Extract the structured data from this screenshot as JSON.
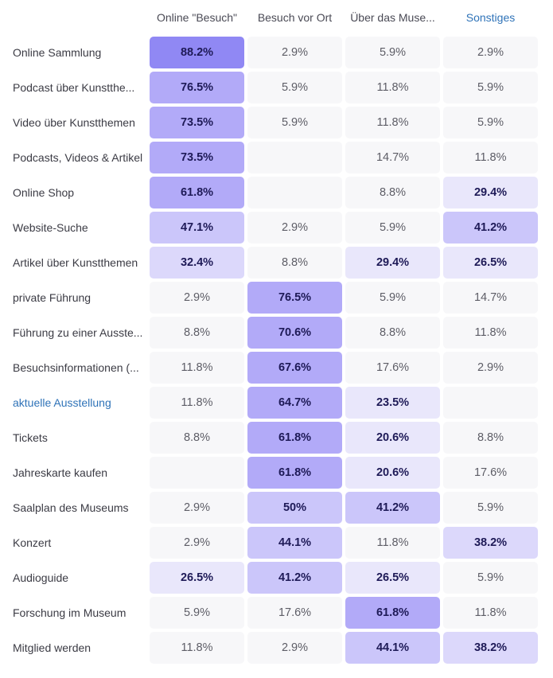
{
  "chart_data": {
    "type": "heatmap",
    "columns": [
      "Online \"Besuch\"",
      "Besuch vor Ort",
      "Über das Museum",
      "Sonstiges"
    ],
    "column_display": [
      "Online \"Besuch\"",
      "Besuch vor Ort",
      "Über das Muse...",
      "Sonstiges"
    ],
    "rows": [
      {
        "label": "Online Sammlung",
        "display": "Online Sammlung",
        "values": [
          88.2,
          2.9,
          5.9,
          2.9
        ]
      },
      {
        "label": "Podcast über Kunstthemen",
        "display": "Podcast über Kunstthe...",
        "values": [
          76.5,
          5.9,
          11.8,
          5.9
        ]
      },
      {
        "label": "Video über Kunstthemen",
        "display": "Video über Kunstthemen",
        "values": [
          73.5,
          5.9,
          11.8,
          5.9
        ]
      },
      {
        "label": "Podcasts, Videos & Artikel",
        "display": "Podcasts, Videos & Artikel",
        "values": [
          73.5,
          null,
          14.7,
          11.8
        ]
      },
      {
        "label": "Online Shop",
        "display": "Online Shop",
        "values": [
          61.8,
          null,
          8.8,
          29.4
        ]
      },
      {
        "label": "Website-Suche",
        "display": "Website-Suche",
        "values": [
          47.1,
          2.9,
          5.9,
          41.2
        ]
      },
      {
        "label": "Artikel über Kunstthemen",
        "display": "Artikel über Kunstthemen",
        "values": [
          32.4,
          8.8,
          29.4,
          26.5
        ]
      },
      {
        "label": "private Führung",
        "display": "private Führung",
        "values": [
          2.9,
          76.5,
          5.9,
          14.7
        ]
      },
      {
        "label": "Führung zu einer Ausstellung",
        "display": "Führung zu einer Ausste...",
        "values": [
          8.8,
          70.6,
          8.8,
          11.8
        ]
      },
      {
        "label": "Besuchsinformationen",
        "display": "Besuchsinformationen (...",
        "values": [
          11.8,
          67.6,
          17.6,
          2.9
        ]
      },
      {
        "label": "aktuelle Ausstellung",
        "display": "aktuelle Ausstellung",
        "values": [
          11.8,
          64.7,
          23.5,
          null
        ]
      },
      {
        "label": "Tickets",
        "display": "Tickets",
        "values": [
          8.8,
          61.8,
          20.6,
          8.8
        ]
      },
      {
        "label": "Jahreskarte kaufen",
        "display": "Jahreskarte kaufen",
        "values": [
          null,
          61.8,
          20.6,
          17.6
        ]
      },
      {
        "label": "Saalplan des Museums",
        "display": "Saalplan des Museums",
        "values": [
          2.9,
          50,
          41.2,
          5.9
        ]
      },
      {
        "label": "Konzert",
        "display": "Konzert",
        "values": [
          2.9,
          44.1,
          11.8,
          38.2
        ]
      },
      {
        "label": "Audioguide",
        "display": "Audioguide",
        "values": [
          26.5,
          41.2,
          26.5,
          5.9
        ]
      },
      {
        "label": "Forschung im Museum",
        "display": "Forschung im Museum",
        "values": [
          5.9,
          17.6,
          61.8,
          11.8
        ]
      },
      {
        "label": "Mitglied werden",
        "display": "Mitglied werden",
        "values": [
          11.8,
          2.9,
          44.1,
          38.2
        ]
      }
    ],
    "value_suffix": "%",
    "highlight_threshold": 20,
    "colors": {
      "cell_background": "#f7f7f9",
      "scale": [
        "#e9e7fb",
        "#dcd8fb",
        "#cbc6fa",
        "#b2aaf8",
        "#9088f4"
      ],
      "strong_text": "#1e1a57",
      "weak_text": "#5d5d66",
      "link_text": "#2f73b8"
    },
    "linked_columns": [
      3
    ],
    "linked_rows": [
      10
    ]
  }
}
